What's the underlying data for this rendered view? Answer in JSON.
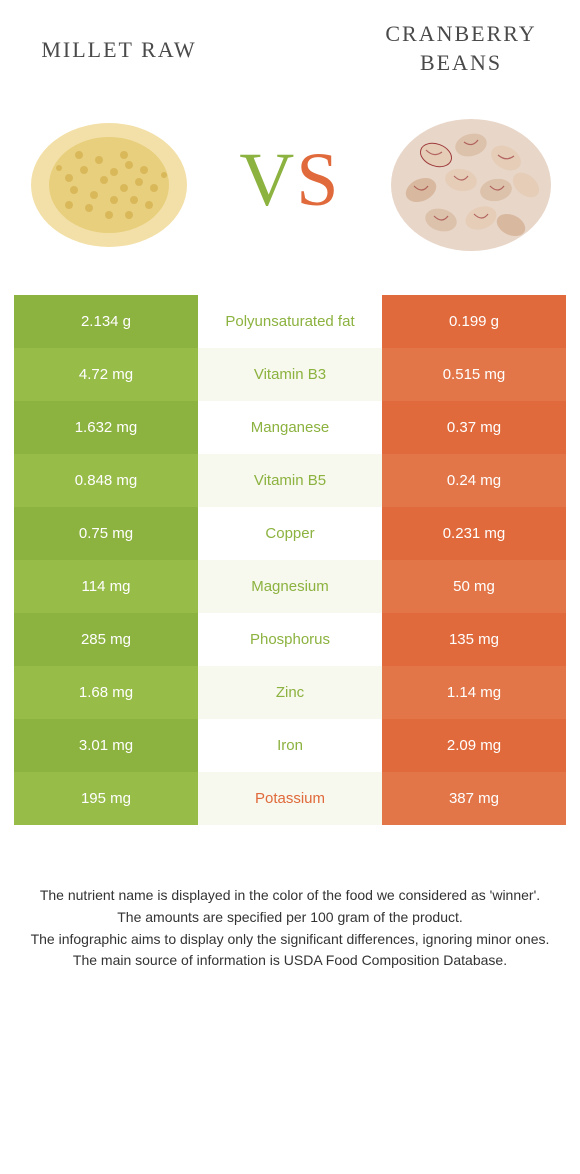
{
  "left_title": "MILLET RAW",
  "right_title": "CRANBERRY BEANS",
  "vs_v": "V",
  "vs_s": "S",
  "colors": {
    "left_a": "#8cb23f",
    "left_b": "#97bc48",
    "mid_a": "#ffffff",
    "mid_b": "#f7f8ee",
    "right_a": "#e06a3b",
    "right_b": "#e27648",
    "nut_left": "#8cb23f",
    "nut_right": "#e06a3b",
    "white_text": "#ffffff"
  },
  "rows": [
    {
      "left": "2.134 g",
      "nutrient": "Polyunsaturated fat",
      "right": "0.199 g",
      "winner": "left"
    },
    {
      "left": "4.72 mg",
      "nutrient": "Vitamin B3",
      "right": "0.515 mg",
      "winner": "left"
    },
    {
      "left": "1.632 mg",
      "nutrient": "Manganese",
      "right": "0.37 mg",
      "winner": "left"
    },
    {
      "left": "0.848 mg",
      "nutrient": "Vitamin B5",
      "right": "0.24 mg",
      "winner": "left"
    },
    {
      "left": "0.75 mg",
      "nutrient": "Copper",
      "right": "0.231 mg",
      "winner": "left"
    },
    {
      "left": "114 mg",
      "nutrient": "Magnesium",
      "right": "50 mg",
      "winner": "left"
    },
    {
      "left": "285 mg",
      "nutrient": "Phosphorus",
      "right": "135 mg",
      "winner": "left"
    },
    {
      "left": "1.68 mg",
      "nutrient": "Zinc",
      "right": "1.14 mg",
      "winner": "left"
    },
    {
      "left": "3.01 mg",
      "nutrient": "Iron",
      "right": "2.09 mg",
      "winner": "left"
    },
    {
      "left": "195 mg",
      "nutrient": "Potassium",
      "right": "387 mg",
      "winner": "right"
    }
  ],
  "footer": [
    "The nutrient name is displayed in the color of the food we considered as 'winner'.",
    "The amounts are specified per 100 gram of the product.",
    "The infographic aims to display only the significant differences, ignoring minor ones.",
    "The main source of information is USDA Food Composition Database."
  ]
}
